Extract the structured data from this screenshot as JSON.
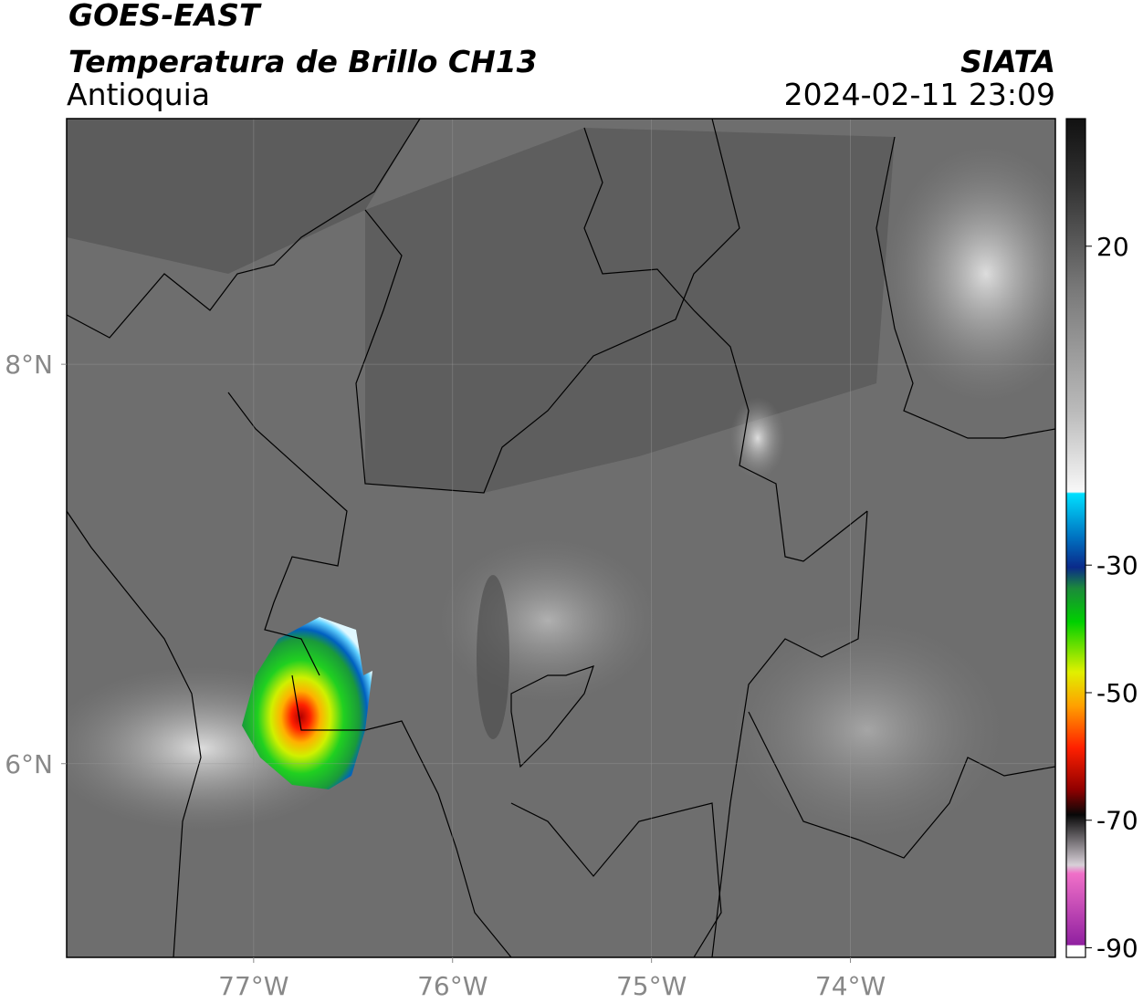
{
  "header": {
    "title": "GOES-EAST",
    "subtitle": "Temperatura de Brillo CH13",
    "region": "Antioquia",
    "source": "SIATA",
    "datetime": "2024-02-11 23:09"
  },
  "map": {
    "xlim": [
      -77.94,
      -72.97
    ],
    "ylim": [
      5.03,
      9.23
    ],
    "xticks": [
      {
        "value": -77,
        "label": "77°W"
      },
      {
        "value": -76,
        "label": "76°W"
      },
      {
        "value": -75,
        "label": "75°W"
      },
      {
        "value": -74,
        "label": "74°W"
      }
    ],
    "yticks": [
      {
        "value": 8,
        "label": "8°N"
      },
      {
        "value": 6,
        "label": "6°N"
      }
    ],
    "grid": true
  },
  "colorbar": {
    "lim": [
      -91.5,
      40
    ],
    "ticks": [
      20,
      -30,
      -50,
      -70,
      -90
    ]
  }
}
